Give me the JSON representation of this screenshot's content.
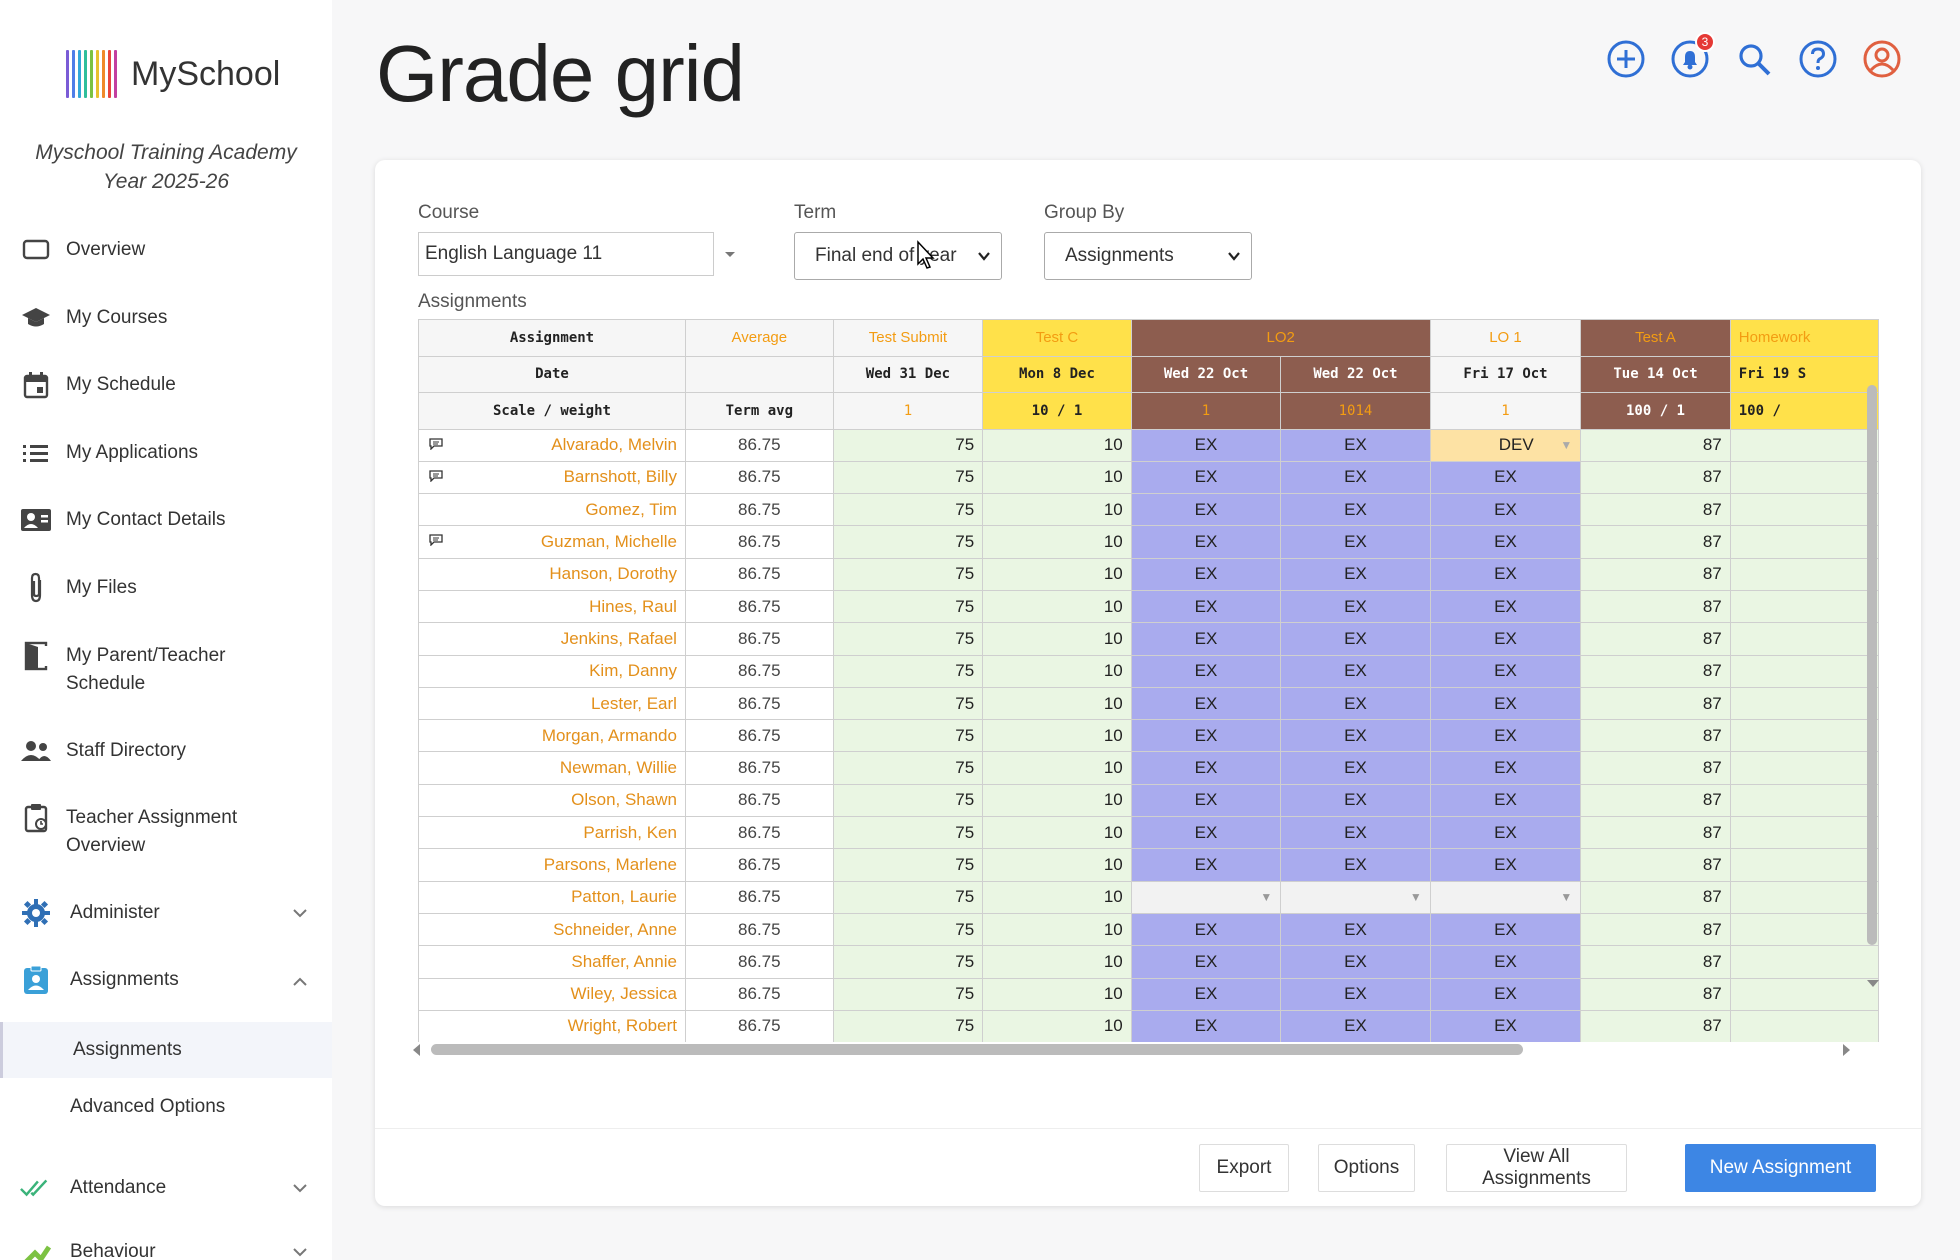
{
  "app": {
    "name": "MySchool"
  },
  "school": {
    "line1": "Myschool Training Academy",
    "line2": "Year 2025-26"
  },
  "sidebar": {
    "items": [
      {
        "label": "Overview",
        "icon": "screen-icon"
      },
      {
        "label": "My Courses",
        "icon": "graduation-cap-icon"
      },
      {
        "label": "My Schedule",
        "icon": "calendar-icon"
      },
      {
        "label": "My Applications",
        "icon": "list-icon"
      },
      {
        "label": "My Contact Details",
        "icon": "contact-card-icon"
      },
      {
        "label": "My Files",
        "icon": "paperclip-icon"
      },
      {
        "label": "My Parent/Teacher Schedule",
        "icon": "door-icon"
      },
      {
        "label": "Staff Directory",
        "icon": "people-icon"
      },
      {
        "label": "Teacher Assignment Overview",
        "icon": "clipboard-icon"
      },
      {
        "label": "Administer",
        "icon": "gear-icon"
      },
      {
        "label": "Assignments",
        "icon": "assignment-user-icon"
      },
      {
        "label": "Attendance",
        "icon": "double-check-icon"
      },
      {
        "label": "Behaviour",
        "icon": "behaviour-icon"
      }
    ],
    "sub_items": [
      {
        "label": "Assignments"
      },
      {
        "label": "Advanced Options"
      }
    ]
  },
  "page": {
    "title": "Grade grid"
  },
  "notifications": {
    "count": "3"
  },
  "filters": {
    "course_label": "Course",
    "course_value": "English Language 11",
    "term_label": "Term",
    "term_value": "Final end of year",
    "group_label": "Group By",
    "group_value": "Assignments",
    "assignments_label": "Assignments"
  },
  "grid": {
    "row_labels": {
      "assignment": "Assignment",
      "date": "Date",
      "scale": "Scale / weight"
    },
    "average_label": "Average",
    "term_avg_label": "Term avg",
    "columns": [
      {
        "name": "Test Submit",
        "date": "Wed 31 Dec",
        "scale": "1"
      },
      {
        "name": "Test C",
        "date": "Mon 8 Dec",
        "scale": "10 / 1"
      },
      {
        "name": "LO2",
        "date": "Wed 22 Oct",
        "scale": "1"
      },
      {
        "name": "",
        "date": "Wed 22 Oct",
        "scale": "1014"
      },
      {
        "name": "LO 1",
        "date": "Fri 17 Oct",
        "scale": "1"
      },
      {
        "name": "Test A",
        "date": "Tue 14 Oct",
        "scale": "100 / 1"
      },
      {
        "name": "Homework",
        "date": "Fri 19 S",
        "scale": "100 /"
      }
    ],
    "students": [
      {
        "name": "Alvarado, Melvin",
        "avg": "86.75",
        "c1": "75",
        "c2": "10",
        "c3": "EX",
        "c4": "EX",
        "c5": "DEV",
        "c6": "87",
        "comment": true
      },
      {
        "name": "Barnshott, Billy",
        "avg": "86.75",
        "c1": "75",
        "c2": "10",
        "c3": "EX",
        "c4": "EX",
        "c5": "EX",
        "c6": "87",
        "comment": true
      },
      {
        "name": "Gomez, Tim",
        "avg": "86.75",
        "c1": "75",
        "c2": "10",
        "c3": "EX",
        "c4": "EX",
        "c5": "EX",
        "c6": "87"
      },
      {
        "name": "Guzman, Michelle",
        "avg": "86.75",
        "c1": "75",
        "c2": "10",
        "c3": "EX",
        "c4": "EX",
        "c5": "EX",
        "c6": "87",
        "comment": true
      },
      {
        "name": "Hanson, Dorothy",
        "avg": "86.75",
        "c1": "75",
        "c2": "10",
        "c3": "EX",
        "c4": "EX",
        "c5": "EX",
        "c6": "87"
      },
      {
        "name": "Hines, Raul",
        "avg": "86.75",
        "c1": "75",
        "c2": "10",
        "c3": "EX",
        "c4": "EX",
        "c5": "EX",
        "c6": "87"
      },
      {
        "name": "Jenkins, Rafael",
        "avg": "86.75",
        "c1": "75",
        "c2": "10",
        "c3": "EX",
        "c4": "EX",
        "c5": "EX",
        "c6": "87"
      },
      {
        "name": "Kim, Danny",
        "avg": "86.75",
        "c1": "75",
        "c2": "10",
        "c3": "EX",
        "c4": "EX",
        "c5": "EX",
        "c6": "87"
      },
      {
        "name": "Lester, Earl",
        "avg": "86.75",
        "c1": "75",
        "c2": "10",
        "c3": "EX",
        "c4": "EX",
        "c5": "EX",
        "c6": "87"
      },
      {
        "name": "Morgan, Armando",
        "avg": "86.75",
        "c1": "75",
        "c2": "10",
        "c3": "EX",
        "c4": "EX",
        "c5": "EX",
        "c6": "87"
      },
      {
        "name": "Newman, Willie",
        "avg": "86.75",
        "c1": "75",
        "c2": "10",
        "c3": "EX",
        "c4": "EX",
        "c5": "EX",
        "c6": "87"
      },
      {
        "name": "Olson, Shawn",
        "avg": "86.75",
        "c1": "75",
        "c2": "10",
        "c3": "EX",
        "c4": "EX",
        "c5": "EX",
        "c6": "87"
      },
      {
        "name": "Parrish, Ken",
        "avg": "86.75",
        "c1": "75",
        "c2": "10",
        "c3": "EX",
        "c4": "EX",
        "c5": "EX",
        "c6": "87"
      },
      {
        "name": "Parsons, Marlene",
        "avg": "86.75",
        "c1": "75",
        "c2": "10",
        "c3": "EX",
        "c4": "EX",
        "c5": "EX",
        "c6": "87"
      },
      {
        "name": "Patton, Laurie",
        "avg": "86.75",
        "c1": "75",
        "c2": "10",
        "c3": "",
        "c4": "",
        "c5": "",
        "c6": "87"
      },
      {
        "name": "Schneider, Anne",
        "avg": "86.75",
        "c1": "75",
        "c2": "10",
        "c3": "EX",
        "c4": "EX",
        "c5": "EX",
        "c6": "87"
      },
      {
        "name": "Shaffer, Annie",
        "avg": "86.75",
        "c1": "75",
        "c2": "10",
        "c3": "EX",
        "c4": "EX",
        "c5": "EX",
        "c6": "87"
      },
      {
        "name": "Wiley, Jessica",
        "avg": "86.75",
        "c1": "75",
        "c2": "10",
        "c3": "EX",
        "c4": "EX",
        "c5": "EX",
        "c6": "87"
      },
      {
        "name": "Wright, Robert",
        "avg": "86.75",
        "c1": "75",
        "c2": "10",
        "c3": "EX",
        "c4": "EX",
        "c5": "EX",
        "c6": "87"
      }
    ]
  },
  "actions": {
    "export": "Export",
    "options": "Options",
    "view_all": "View All Assignments",
    "new": "New Assignment"
  },
  "colors": {
    "accent": "#3d86e4",
    "orange": "#e3901b",
    "green_cell": "#eaf6e3",
    "blue_cell": "#a9abee",
    "yellow_header": "#ffe14a",
    "brown_header": "#8d5d4f"
  }
}
